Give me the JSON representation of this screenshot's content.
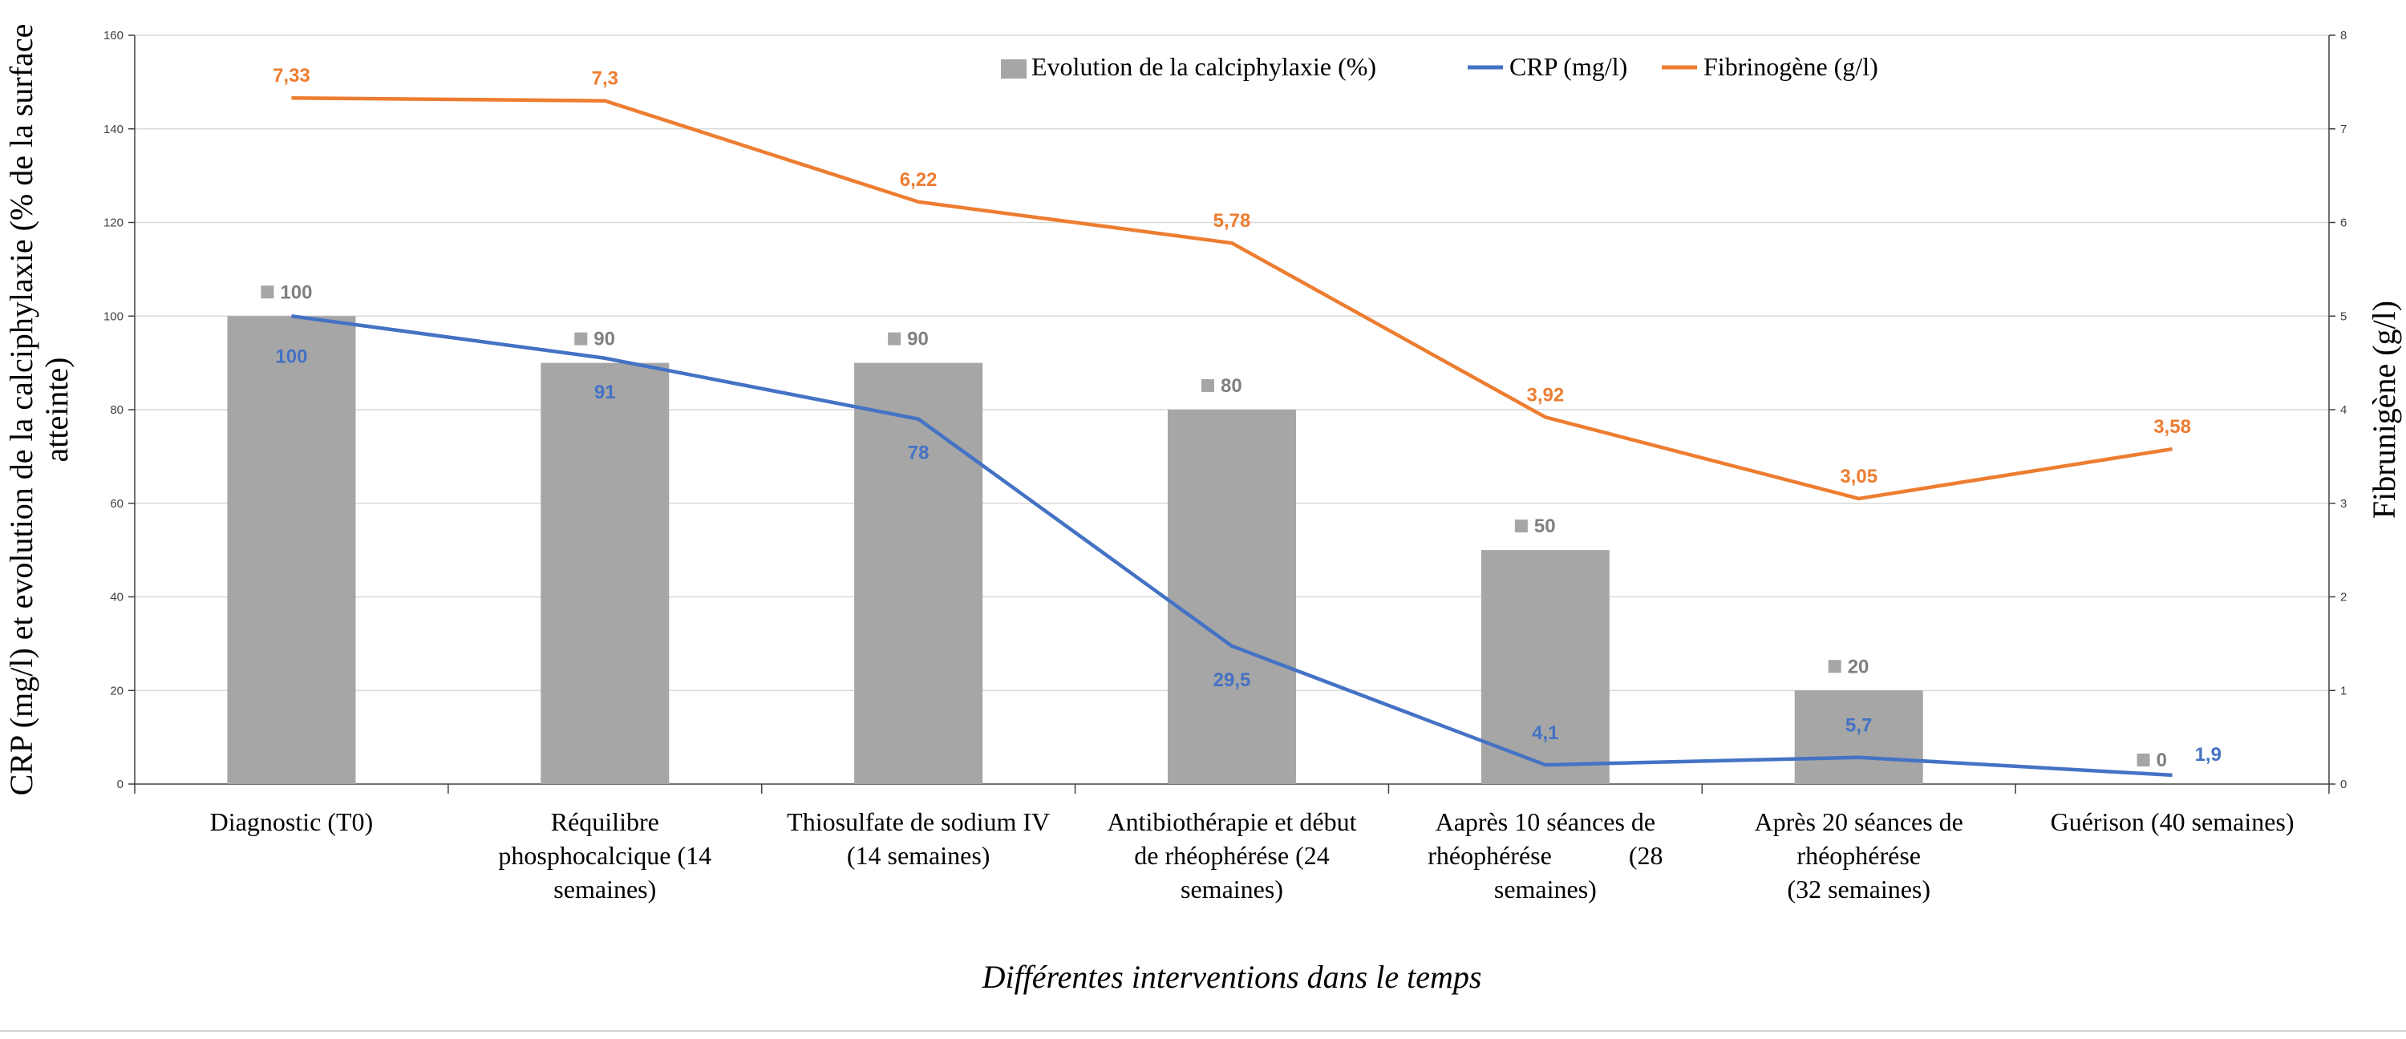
{
  "chart_data": {
    "type": "bar",
    "categories": [
      [
        "Diagnostic (T0)"
      ],
      [
        "Réquilibre",
        "phosphocalcique (14",
        "semaines)"
      ],
      [
        "Thiosulfate de sodium IV",
        "(14 semaines)"
      ],
      [
        "Antibiothérapie et début",
        "de rhéophérése (24",
        "semaines)"
      ],
      [
        "Aaprès 10 séances de",
        "rhéophérése            (28",
        "semaines)"
      ],
      [
        "Après 20 séances de",
        "rhéophérése",
        "(32 semaines)"
      ],
      [
        "Guérison (40 semaines)"
      ]
    ],
    "series": [
      {
        "name": "Evolution de la calciphylaxie (%)",
        "type": "bar",
        "axis": "left",
        "color": "#a6a6a6",
        "label_color": "#808080",
        "values": [
          100,
          90,
          90,
          80,
          50,
          20,
          0
        ],
        "labels": [
          "100",
          "90",
          "90",
          "80",
          "50",
          "20",
          "0"
        ]
      },
      {
        "name": "CRP (mg/l)",
        "type": "line",
        "axis": "left",
        "color": "#4472c4",
        "values": [
          100,
          91,
          78,
          29.5,
          4.1,
          5.7,
          1.9
        ],
        "labels": [
          "100",
          "91",
          "78",
          "29,5",
          "4,1",
          "5,7",
          "1,9"
        ]
      },
      {
        "name": "Fibrinogène (g/l)",
        "type": "line",
        "axis": "right",
        "color": "#ed7d31",
        "values": [
          7.33,
          7.3,
          6.22,
          5.78,
          3.92,
          3.05,
          3.58
        ],
        "labels": [
          "7,33",
          "7,3",
          "6,22",
          "5,78",
          "3,92",
          "3,05",
          "3,58"
        ]
      }
    ],
    "left_axis": {
      "label_lines": [
        "CRP (mg/l) et evolution de la calciphylaxie (% de la surface",
        "atteinte)"
      ],
      "ylim": [
        0,
        160
      ],
      "ticks": [
        0,
        20,
        40,
        60,
        80,
        100,
        120,
        140,
        160
      ]
    },
    "right_axis": {
      "label": "Fibrunigène (g/l)",
      "ylim": [
        0,
        8
      ],
      "ticks": [
        0,
        1,
        2,
        3,
        4,
        5,
        6,
        7,
        8
      ]
    },
    "xlabel": "Différentes interventions dans le temps",
    "legend_position": "top",
    "grid": true
  }
}
